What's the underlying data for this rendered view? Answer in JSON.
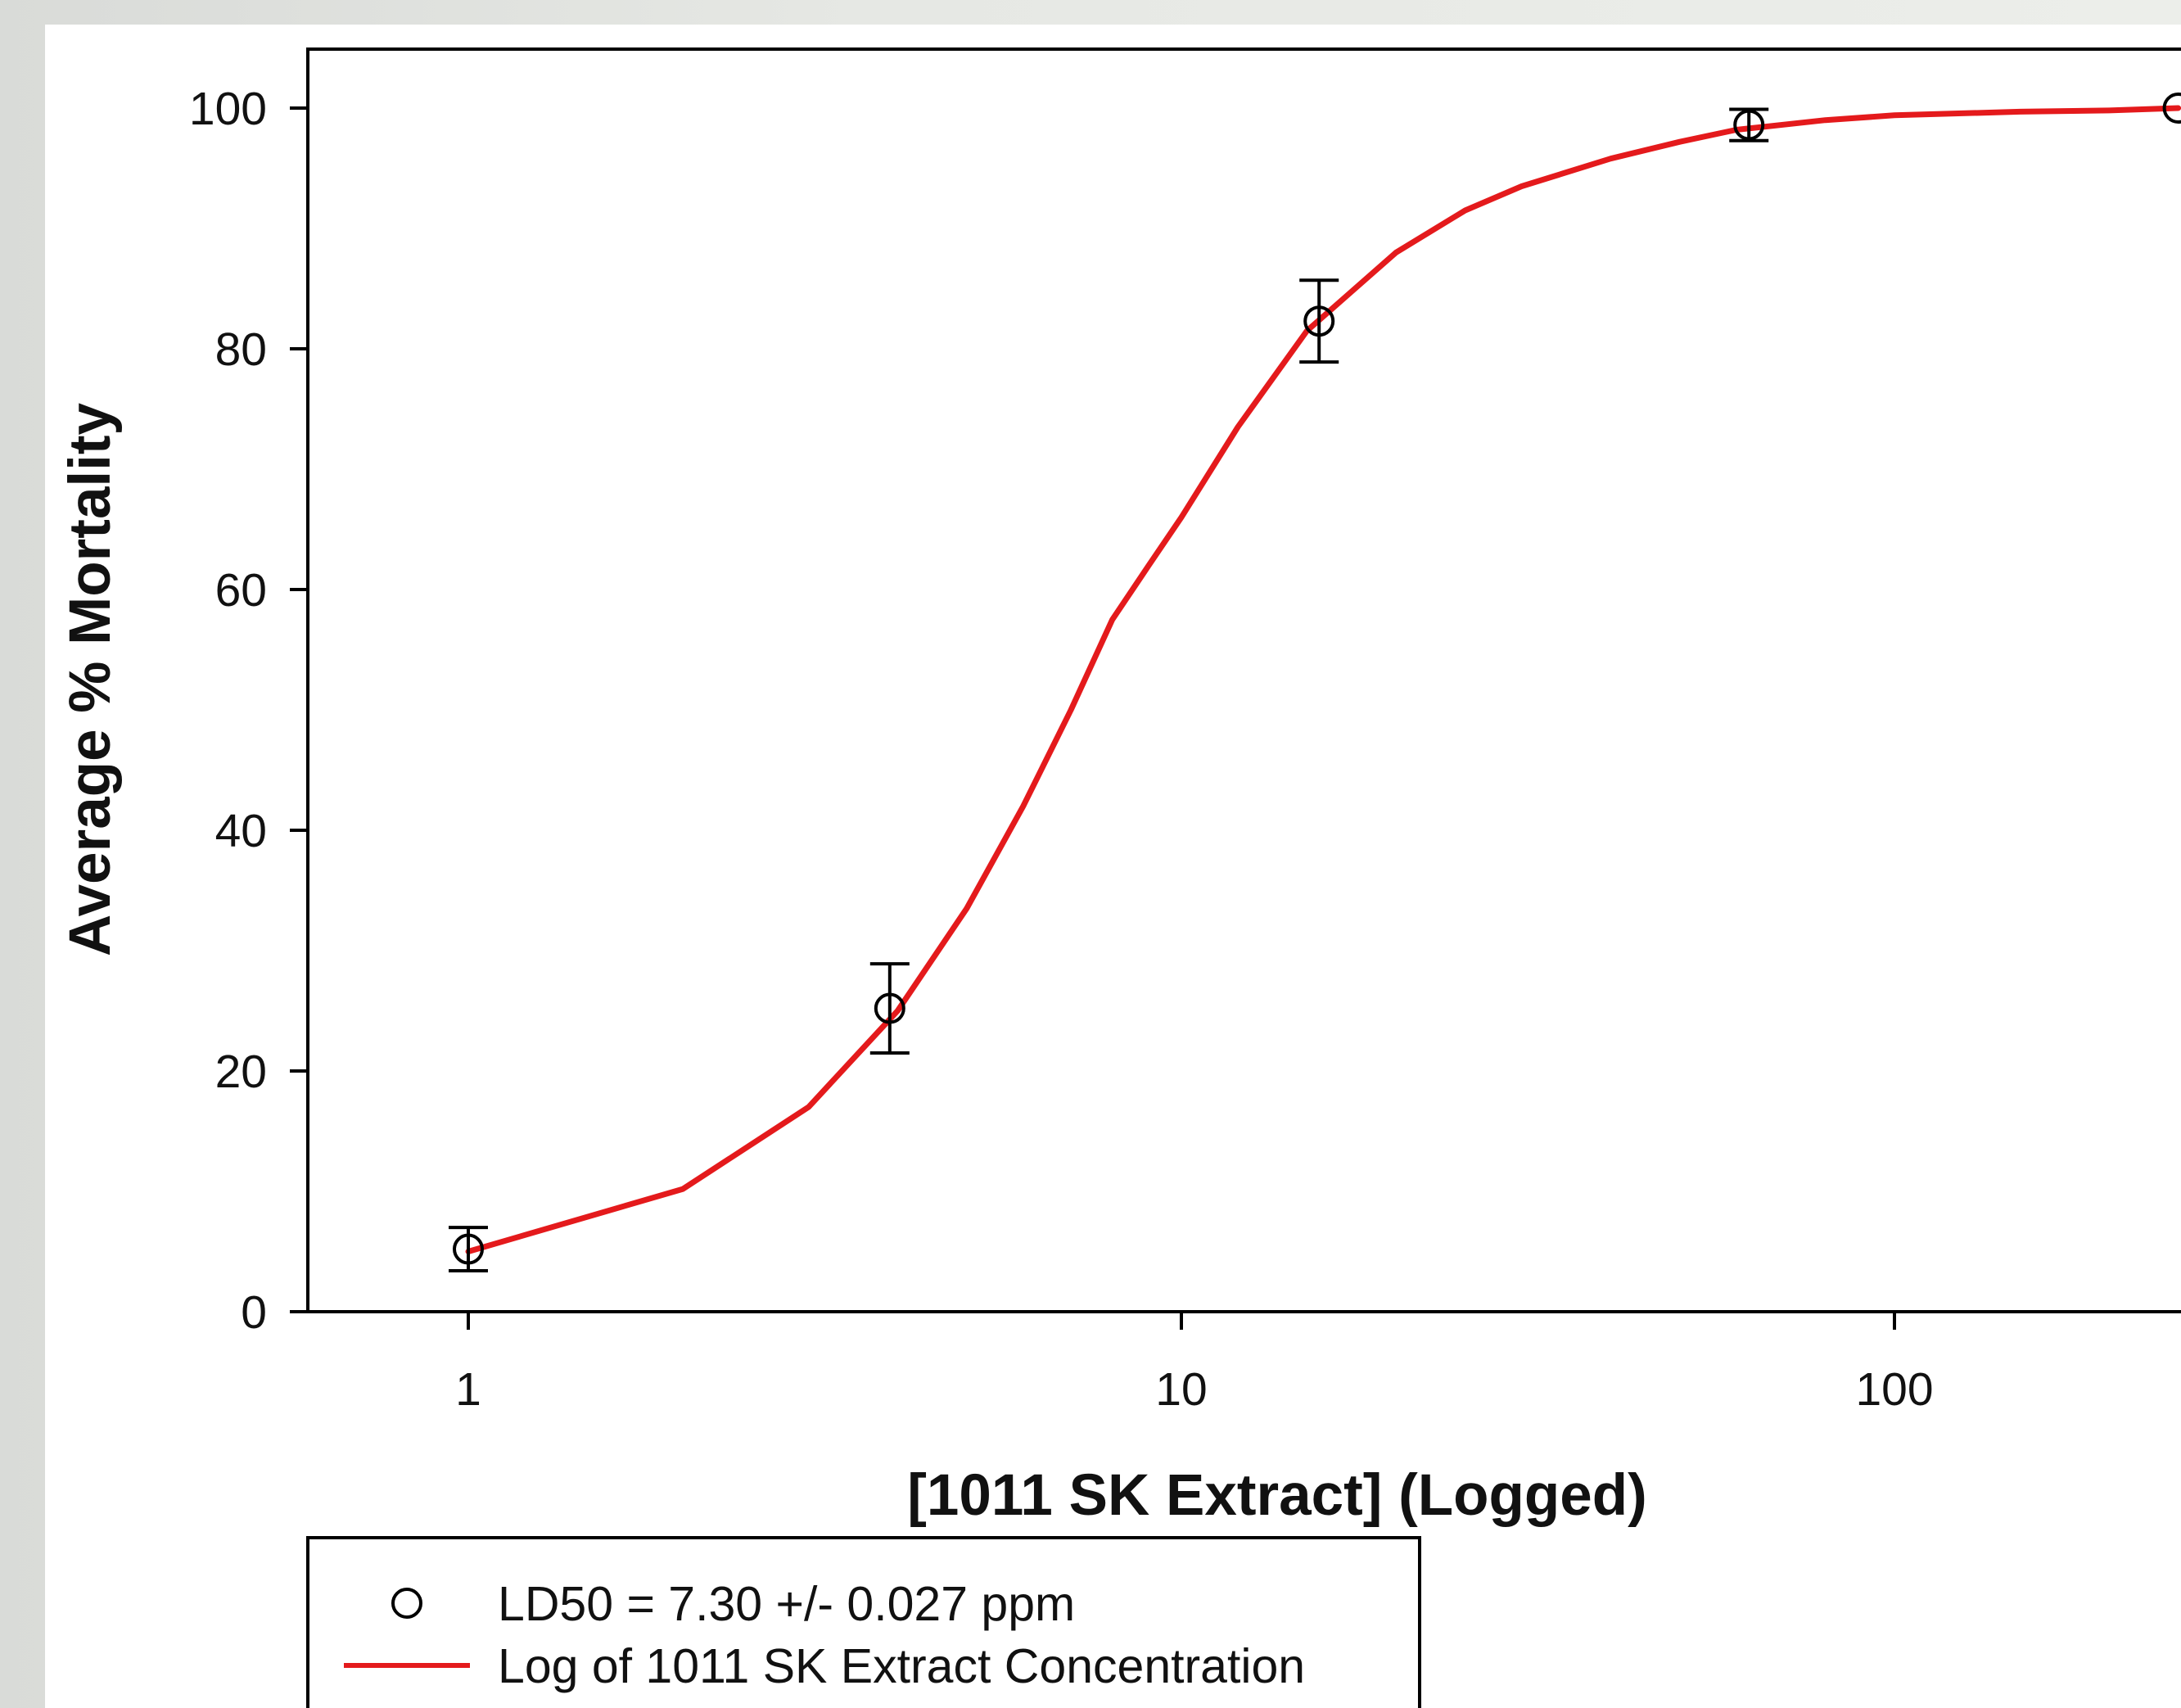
{
  "chart_data": {
    "type": "scatter",
    "title": "",
    "xlabel": "[1011 SK Extract] (Logged)",
    "ylabel": "Average % Mortality",
    "x_scale": "log",
    "xlim": [
      0.6,
      520
    ],
    "ylim": [
      0,
      105
    ],
    "x_ticks": [
      1,
      10,
      100
    ],
    "x_tick_labels": [
      "1",
      "10",
      "100"
    ],
    "y_ticks": [
      0,
      20,
      40,
      60,
      80,
      100
    ],
    "y_tick_labels": [
      "0",
      "20",
      "40",
      "60",
      "80",
      "100"
    ],
    "grid": false,
    "legend_position": "bottom-left",
    "series": [
      {
        "name": "LD50 = 7.30 +/- 0.027 ppm",
        "kind": "points_with_error_bars",
        "color": "#000000",
        "x": [
          1,
          3.9,
          15.6,
          62.5,
          250
        ],
        "y": [
          5.2,
          25.2,
          82.3,
          98.6,
          100
        ],
        "error": [
          1.8,
          3.7,
          3.4,
          1.3,
          0
        ]
      },
      {
        "name": "Log of 1011 SK Extract Concentration",
        "kind": "line",
        "color": "#e41a1c",
        "x": [
          1,
          2,
          3,
          4,
          5,
          6,
          7,
          8,
          9,
          10,
          12,
          15,
          20,
          25,
          30,
          40,
          50,
          60,
          80,
          100,
          150,
          200,
          250
        ],
        "y": [
          5.0,
          10.2,
          17.0,
          25.0,
          33.5,
          42.0,
          50.0,
          57.5,
          62.0,
          66.0,
          73.5,
          81.5,
          88.0,
          91.5,
          93.5,
          95.8,
          97.2,
          98.2,
          99.0,
          99.4,
          99.7,
          99.8,
          100.0
        ]
      }
    ]
  }
}
